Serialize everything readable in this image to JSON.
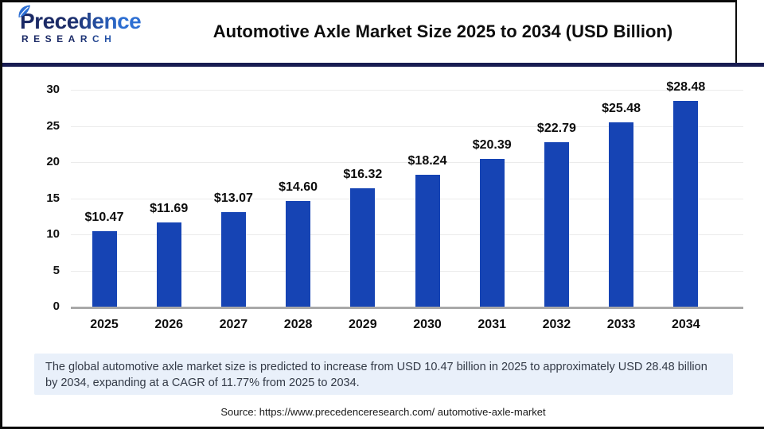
{
  "brand": {
    "name_top": "Precedence",
    "name_bottom": "RESEARCH"
  },
  "header": {
    "title": "Automotive Axle Market Size 2025 to 2034 (USD Billion)"
  },
  "chart_data": {
    "type": "bar",
    "title": "Automotive Axle Market Size 2025 to 2034 (USD Billion)",
    "categories": [
      "2025",
      "2026",
      "2027",
      "2028",
      "2029",
      "2030",
      "2031",
      "2032",
      "2033",
      "2034"
    ],
    "values": [
      10.47,
      11.69,
      13.07,
      14.6,
      16.32,
      18.24,
      20.39,
      22.79,
      25.48,
      28.48
    ],
    "value_labels": [
      "$10.47",
      "$11.69",
      "$13.07",
      "$14.60",
      "$16.32",
      "$18.24",
      "$20.39",
      "$22.79",
      "$25.48",
      "$28.48"
    ],
    "unit": "USD Billion",
    "xlabel": "",
    "ylabel": "",
    "ylim": [
      0,
      30
    ],
    "yticks": [
      0,
      5,
      10,
      15,
      20,
      25,
      30
    ],
    "grid": true,
    "legend": false,
    "bar_color": "#1644b4"
  },
  "summary": {
    "text": "The global automotive axle market size is predicted to increase from USD 10.47 billion in 2025 to approximately USD 28.48 billion by 2034, expanding at a CAGR of 11.77% from 2025 to 2034."
  },
  "source": {
    "label": "Source: https://www.precedenceresearch.com/ automotive-axle-market"
  },
  "colors": {
    "bar": "#1644b4",
    "accent_navy": "#181c52",
    "logo_navy": "#1b2a66",
    "logo_blue": "#2d6fd3",
    "summary_bg": "#e9f0fa",
    "gridline": "#ebebeb",
    "axis_line": "#a9a9a9"
  }
}
